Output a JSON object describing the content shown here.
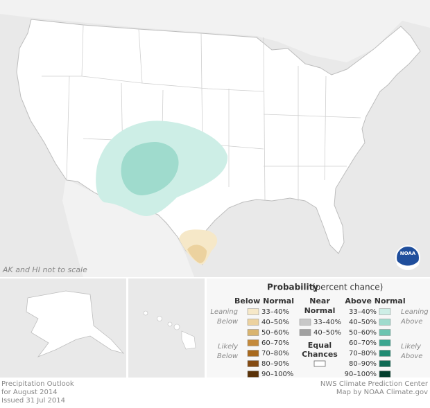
{
  "map": {
    "note": "AK and HI not to scale",
    "logo": "NOAA"
  },
  "legend": {
    "title": "Probability",
    "subtitle": "(percent chance)",
    "below": {
      "heading": "Below Normal",
      "leaning": [
        "Leaning",
        "Below"
      ],
      "likely": [
        "Likely",
        "Below"
      ],
      "items": [
        {
          "label": "33–40%",
          "color": "#f6e8c8"
        },
        {
          "label": "40–50%",
          "color": "#ecd29f"
        },
        {
          "label": "50–60%",
          "color": "#d9b46f"
        },
        {
          "label": "60–70%",
          "color": "#c48a3c"
        },
        {
          "label": "70–80%",
          "color": "#a8691d"
        },
        {
          "label": "80–90%",
          "color": "#844b12"
        },
        {
          "label": "90–100%",
          "color": "#5a3208"
        }
      ]
    },
    "near": {
      "heading": [
        "Near",
        "Normal"
      ],
      "items": [
        {
          "label": "33–40%",
          "color": "#c8c8c8"
        },
        {
          "label": "40–50%",
          "color": "#a0a0a0"
        }
      ]
    },
    "above": {
      "heading": "Above Normal",
      "leaning": [
        "Leaning",
        "Above"
      ],
      "likely": [
        "Likely",
        "Above"
      ],
      "items": [
        {
          "label": "33–40%",
          "color": "#cdeee6"
        },
        {
          "label": "40–50%",
          "color": "#9fdbcd"
        },
        {
          "label": "50–60%",
          "color": "#6cc4b0"
        },
        {
          "label": "60–70%",
          "color": "#3aa690"
        },
        {
          "label": "70–80%",
          "color": "#1f8a72"
        },
        {
          "label": "80–90%",
          "color": "#0f6a54"
        },
        {
          "label": "90–100%",
          "color": "#05402f"
        }
      ]
    },
    "equal": {
      "label": [
        "Equal",
        "Chances"
      ],
      "color": "#ffffff"
    }
  },
  "footer": {
    "left": [
      "Precipitation Outlook",
      "for August 2014",
      "Issued 31 Jul 2014"
    ],
    "right": [
      "NWS Climate Prediction Center",
      "Map by NOAA Climate.gov"
    ]
  }
}
